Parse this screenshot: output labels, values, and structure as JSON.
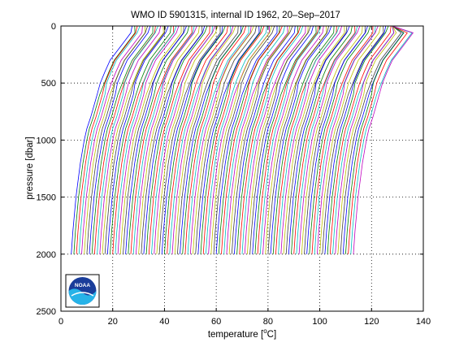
{
  "chart_data": {
    "type": "line",
    "title": "WMO ID 5901315, internal ID 1962, 20–Sep–2017",
    "xlabel_text": "temperature [",
    "xlabel_unit_super": "o",
    "xlabel_unit_after": "C]",
    "ylabel": "pressure [dbar]",
    "xlim": [
      0,
      140
    ],
    "ylim": [
      2500,
      0
    ],
    "y_reversed": true,
    "grid": true,
    "grid_style": "dotted",
    "xticks": [
      "0",
      "20",
      "40",
      "60",
      "80",
      "100",
      "120",
      "140"
    ],
    "xtick_values": [
      0,
      20,
      40,
      60,
      80,
      100,
      120,
      140
    ],
    "yticks": [
      "0",
      "500",
      "1000",
      "1500",
      "2000",
      "2500"
    ],
    "ytick_values": [
      0,
      500,
      1000,
      1500,
      2000,
      2500
    ],
    "profiles": {
      "count": 110,
      "x_offset_step": 1,
      "first_deep_temperature": 4,
      "pressure_levels": [
        0,
        60,
        150,
        300,
        400,
        500,
        600,
        800,
        900,
        1000,
        1200,
        1500,
        1800,
        2000
      ],
      "base_profile_offsets": [
        23.5,
        23,
        20,
        15,
        13,
        11.2,
        10,
        7.5,
        6,
        5,
        3.5,
        1.8,
        0.6,
        0
      ],
      "colors": [
        "#0000ff",
        "#008000",
        "#ff0000",
        "#00bfbf",
        "#bf00bf",
        "#bfbf00",
        "#404040"
      ]
    }
  },
  "logo": {
    "name": "NOAA",
    "text": "NOAA"
  }
}
